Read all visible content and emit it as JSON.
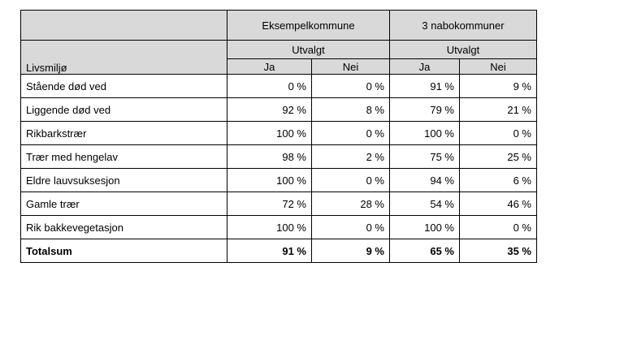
{
  "table": {
    "row_header": "Livsmiljø",
    "groups": [
      {
        "name": "Eksempelkommune",
        "sub": "Utvalgt",
        "cols": [
          "Ja",
          "Nei"
        ]
      },
      {
        "name": "3 nabokommuner",
        "sub": "Utvalgt",
        "cols": [
          "Ja",
          "Nei"
        ]
      }
    ],
    "rows": [
      {
        "name": "Stående død ved",
        "values": [
          "0 %",
          "0 %",
          "91 %",
          "9 %"
        ]
      },
      {
        "name": "Liggende død ved",
        "values": [
          "92 %",
          "8 %",
          "79 %",
          "21 %"
        ]
      },
      {
        "name": "Rikbarkstrær",
        "values": [
          "100 %",
          "0 %",
          "100 %",
          "0 %"
        ]
      },
      {
        "name": "Trær med hengelav",
        "values": [
          "98 %",
          "2 %",
          "75 %",
          "25 %"
        ]
      },
      {
        "name": "Eldre lauvsuksesjon",
        "values": [
          "100 %",
          "0 %",
          "94 %",
          "6 %"
        ]
      },
      {
        "name": "Gamle trær",
        "values": [
          "72 %",
          "28 %",
          "54 %",
          "46 %"
        ]
      },
      {
        "name": "Rik bakkevegetasjon",
        "values": [
          "100 %",
          "0 %",
          "100 %",
          "0 %"
        ]
      }
    ],
    "total": {
      "name": "Totalsum",
      "values": [
        "91 %",
        "9 %",
        "65 %",
        "35 %"
      ]
    }
  }
}
